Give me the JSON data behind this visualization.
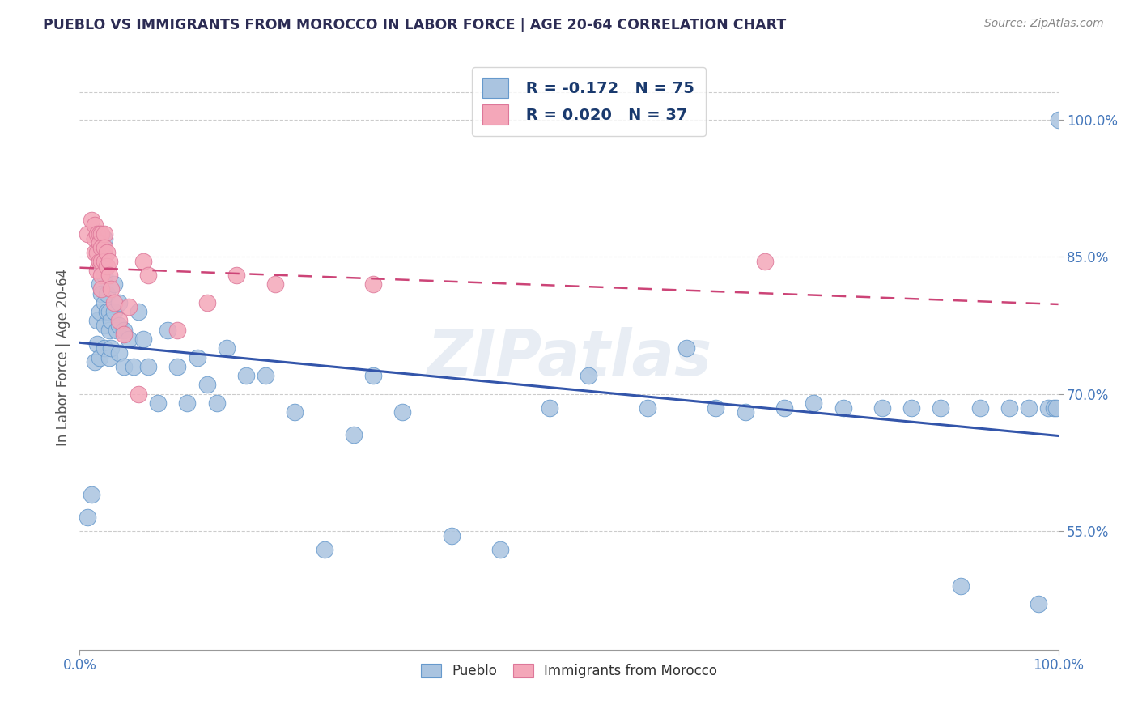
{
  "title": "PUEBLO VS IMMIGRANTS FROM MOROCCO IN LABOR FORCE | AGE 20-64 CORRELATION CHART",
  "source_text": "Source: ZipAtlas.com",
  "ylabel": "In Labor Force | Age 20-64",
  "xlim": [
    0.0,
    1.0
  ],
  "ylim": [
    0.42,
    1.06
  ],
  "yticks": [
    0.55,
    0.7,
    0.85,
    1.0
  ],
  "ytick_labels": [
    "55.0%",
    "70.0%",
    "85.0%",
    "100.0%"
  ],
  "xticks": [
    0.0,
    1.0
  ],
  "xtick_labels": [
    "0.0%",
    "100.0%"
  ],
  "legend_r1": "R = -0.172",
  "legend_n1": "N = 75",
  "legend_r2": "R = 0.020",
  "legend_n2": "N = 37",
  "title_color": "#2c2c54",
  "blue_scatter_color": "#aac4e0",
  "pink_scatter_color": "#f4a7b9",
  "blue_edge_color": "#6699cc",
  "pink_edge_color": "#dd7799",
  "blue_line_color": "#3355aa",
  "pink_line_color": "#cc4477",
  "grid_color": "#cccccc",
  "background_color": "#ffffff",
  "tick_label_color": "#4477bb",
  "watermark": "ZIPatlas",
  "pueblo_x": [
    0.008,
    0.012,
    0.015,
    0.018,
    0.018,
    0.02,
    0.02,
    0.02,
    0.022,
    0.022,
    0.022,
    0.025,
    0.025,
    0.025,
    0.025,
    0.025,
    0.025,
    0.028,
    0.028,
    0.03,
    0.03,
    0.03,
    0.032,
    0.032,
    0.035,
    0.035,
    0.038,
    0.04,
    0.04,
    0.04,
    0.045,
    0.045,
    0.05,
    0.055,
    0.06,
    0.065,
    0.07,
    0.08,
    0.09,
    0.1,
    0.11,
    0.12,
    0.13,
    0.14,
    0.15,
    0.17,
    0.19,
    0.22,
    0.25,
    0.28,
    0.3,
    0.33,
    0.38,
    0.43,
    0.48,
    0.52,
    0.58,
    0.62,
    0.65,
    0.68,
    0.72,
    0.75,
    0.78,
    0.82,
    0.85,
    0.88,
    0.9,
    0.92,
    0.95,
    0.97,
    0.98,
    0.99,
    0.995,
    0.998,
    1.0
  ],
  "pueblo_y": [
    0.565,
    0.59,
    0.735,
    0.78,
    0.755,
    0.82,
    0.79,
    0.74,
    0.86,
    0.84,
    0.81,
    0.87,
    0.85,
    0.83,
    0.8,
    0.775,
    0.75,
    0.81,
    0.79,
    0.79,
    0.77,
    0.74,
    0.78,
    0.75,
    0.82,
    0.79,
    0.77,
    0.8,
    0.775,
    0.745,
    0.77,
    0.73,
    0.76,
    0.73,
    0.79,
    0.76,
    0.73,
    0.69,
    0.77,
    0.73,
    0.69,
    0.74,
    0.71,
    0.69,
    0.75,
    0.72,
    0.72,
    0.68,
    0.53,
    0.655,
    0.72,
    0.68,
    0.545,
    0.53,
    0.685,
    0.72,
    0.685,
    0.75,
    0.685,
    0.68,
    0.685,
    0.69,
    0.685,
    0.685,
    0.685,
    0.685,
    0.49,
    0.685,
    0.685,
    0.685,
    0.47,
    0.685,
    0.685,
    0.685,
    1.0
  ],
  "morocco_x": [
    0.008,
    0.012,
    0.015,
    0.015,
    0.015,
    0.018,
    0.018,
    0.018,
    0.02,
    0.02,
    0.02,
    0.022,
    0.022,
    0.022,
    0.022,
    0.022,
    0.025,
    0.025,
    0.025,
    0.028,
    0.028,
    0.03,
    0.03,
    0.032,
    0.035,
    0.04,
    0.045,
    0.05,
    0.06,
    0.065,
    0.07,
    0.1,
    0.13,
    0.16,
    0.2,
    0.3,
    0.7
  ],
  "morocco_y": [
    0.875,
    0.89,
    0.885,
    0.87,
    0.855,
    0.875,
    0.855,
    0.835,
    0.875,
    0.865,
    0.845,
    0.875,
    0.86,
    0.845,
    0.83,
    0.815,
    0.875,
    0.86,
    0.845,
    0.855,
    0.84,
    0.845,
    0.83,
    0.815,
    0.8,
    0.78,
    0.765,
    0.795,
    0.7,
    0.845,
    0.83,
    0.77,
    0.8,
    0.83,
    0.82,
    0.82,
    0.845
  ]
}
